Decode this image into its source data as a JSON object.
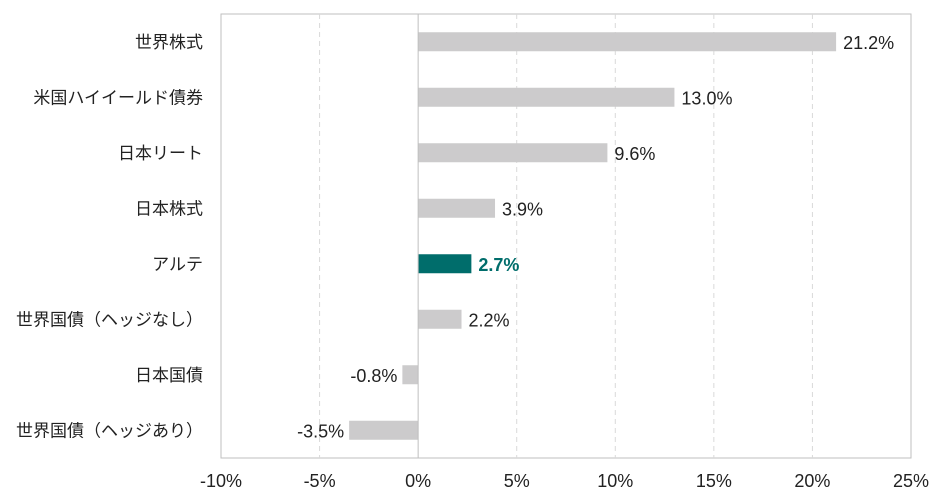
{
  "chart_data": {
    "type": "bar",
    "orientation": "horizontal",
    "title": "",
    "xlabel": "",
    "ylabel": "",
    "categories": [
      "世界株式",
      "米国ハイイールド債券",
      "日本リート",
      "日本株式",
      "アルテ",
      "世界国債（ヘッジなし）",
      "日本国債",
      "世界国債（ヘッジあり）"
    ],
    "values": [
      21.2,
      13.0,
      9.6,
      3.9,
      2.7,
      2.2,
      -0.8,
      -3.5
    ],
    "value_labels": [
      "21.2%",
      "13.0%",
      "9.6%",
      "3.9%",
      "2.7%",
      "2.2%",
      "-0.8%",
      "-3.5%"
    ],
    "highlight_index": 4,
    "xlim": [
      -10,
      25
    ],
    "xticks": [
      -10,
      -5,
      0,
      5,
      10,
      15,
      20,
      25
    ],
    "xtick_labels": [
      "-10%",
      "-5%",
      "0%",
      "5%",
      "10%",
      "15%",
      "20%",
      "25%"
    ],
    "grid": "vertical dashed",
    "colors": {
      "bar": "#cccbcc",
      "highlight": "#006d6b",
      "grid": "#d9d9d9",
      "axis": "#bfbfbf"
    }
  }
}
